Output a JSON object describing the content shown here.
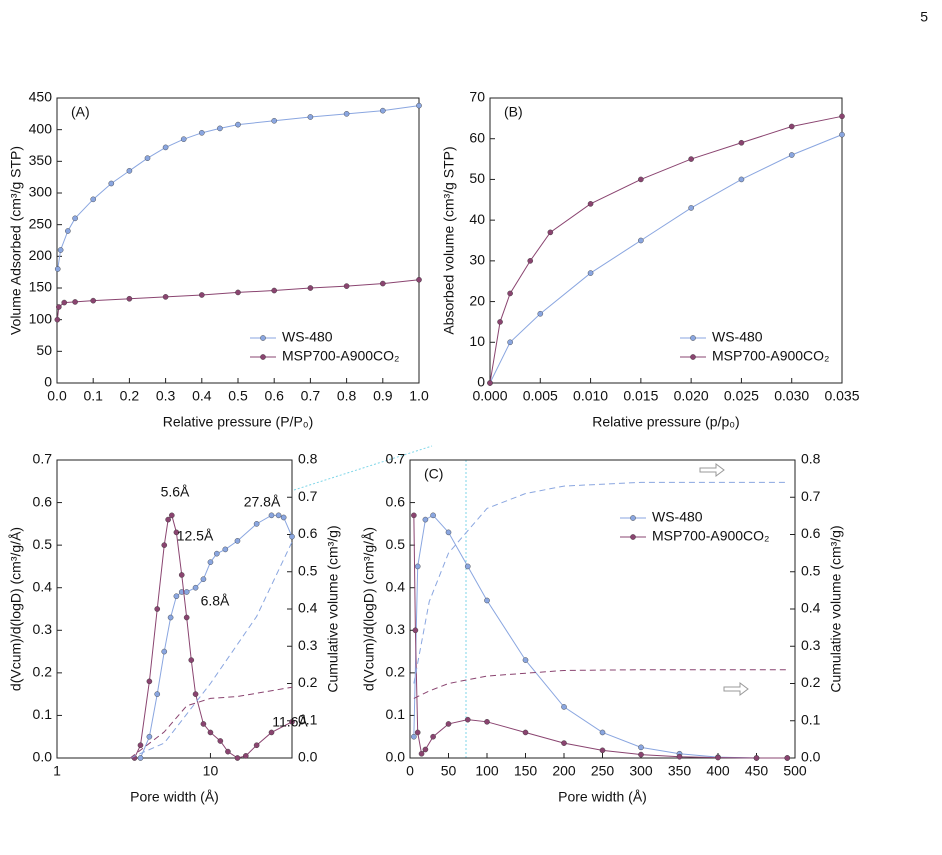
{
  "page_number": "5",
  "chart_data": [
    {
      "type": "line",
      "label": "(A)",
      "xlabel": "Relative pressure (P/P₀)",
      "ylabel": "Volume Adsorbed (cm³/g STP)",
      "xlim": [
        0,
        1
      ],
      "ylim": [
        0,
        450
      ],
      "xticks": [
        {
          "value": 0,
          "label": "0.0"
        },
        0.1,
        0.2,
        0.3,
        0.4,
        0.5,
        0.6,
        0.7,
        0.8,
        0.9,
        {
          "value": 1,
          "label": "1.0"
        }
      ],
      "yticks": [
        0,
        50,
        100,
        150,
        200,
        250,
        300,
        350,
        400,
        450
      ],
      "series": [
        {
          "name": "WS-480",
          "color": "#8aa6e0",
          "marker": true,
          "x": [
            0.002,
            0.01,
            0.03,
            0.05,
            0.1,
            0.15,
            0.2,
            0.25,
            0.3,
            0.35,
            0.4,
            0.45,
            0.5,
            0.6,
            0.7,
            0.8,
            0.9,
            1.0
          ],
          "values": [
            180,
            210,
            240,
            260,
            290,
            315,
            335,
            355,
            372,
            385,
            395,
            402,
            408,
            414,
            420,
            425,
            430,
            438
          ]
        },
        {
          "name": "MSP700-A900CO₂",
          "color": "#8a4470",
          "marker": true,
          "x": [
            0.001,
            0.005,
            0.02,
            0.05,
            0.1,
            0.2,
            0.3,
            0.4,
            0.5,
            0.6,
            0.7,
            0.8,
            0.9,
            1.0
          ],
          "values": [
            100,
            120,
            127,
            128,
            130,
            133,
            136,
            139,
            143,
            146,
            150,
            153,
            157,
            163
          ]
        }
      ]
    },
    {
      "type": "line",
      "label": "(B)",
      "xlabel": "Relative pressure (p/p₀)",
      "ylabel": "Absorbed volume (cm³/g STP)",
      "xlim": [
        0,
        0.035
      ],
      "ylim": [
        0,
        70
      ],
      "xticks": [
        {
          "value": 0,
          "label": "0.000"
        },
        0.005,
        {
          "value": 0.01,
          "label": "0.010"
        },
        0.015,
        {
          "value": 0.02,
          "label": "0.020"
        },
        0.025,
        {
          "value": 0.03,
          "label": "0.030"
        },
        0.035
      ],
      "yticks": [
        0,
        10,
        20,
        30,
        40,
        50,
        60,
        70
      ],
      "series": [
        {
          "name": "WS-480",
          "color": "#8aa6e0",
          "marker": true,
          "x": [
            0,
            0.002,
            0.005,
            0.01,
            0.015,
            0.02,
            0.025,
            0.03,
            0.035
          ],
          "values": [
            0,
            10,
            17,
            27,
            35,
            43,
            50,
            56,
            61
          ]
        },
        {
          "name": "MSP700-A900CO₂",
          "color": "#8a4470",
          "marker": true,
          "x": [
            0,
            0.001,
            0.002,
            0.004,
            0.006,
            0.01,
            0.015,
            0.02,
            0.025,
            0.03,
            0.035
          ],
          "values": [
            0,
            15,
            22,
            30,
            37,
            44,
            50,
            55,
            59,
            63,
            65.5
          ]
        }
      ]
    },
    {
      "type": "line",
      "xlabel": "Pore width (Å)",
      "ylabel": "d(Vcum)/d(logD) (cm³/g/Å)",
      "y2label": "Cumulative volume (cm³/g)",
      "xscale": "log",
      "xlim": [
        1,
        34
      ],
      "ylim": [
        0,
        0.7
      ],
      "y2lim": [
        0,
        0.8
      ],
      "xticks": [
        1,
        10
      ],
      "yticks": [
        {
          "value": 0,
          "label": "0.0"
        },
        0.1,
        0.2,
        0.3,
        0.4,
        0.5,
        0.6,
        0.7
      ],
      "y2ticks": [
        {
          "value": 0,
          "label": "0.0"
        },
        0.1,
        0.2,
        0.3,
        0.4,
        0.5,
        0.6,
        0.7,
        0.8
      ],
      "annotations": [
        "5.6Å",
        "12.5Å",
        "27.8Å",
        "6.8Å",
        "11.6Å"
      ],
      "series": [
        {
          "color": "#8aa6e0",
          "marker": true,
          "x": [
            3.5,
            4,
            4.5,
            5,
            5.5,
            6,
            6.5,
            7,
            8,
            9,
            10,
            11,
            12.5,
            15,
            20,
            25,
            27.8,
            30,
            34
          ],
          "values": [
            0,
            0.05,
            0.15,
            0.25,
            0.33,
            0.38,
            0.39,
            0.39,
            0.4,
            0.42,
            0.46,
            0.48,
            0.49,
            0.51,
            0.55,
            0.57,
            0.57,
            0.565,
            0.52
          ]
        },
        {
          "color": "#8a4470",
          "marker": true,
          "x": [
            3.2,
            3.5,
            4,
            4.5,
            5,
            5.3,
            5.6,
            6,
            6.5,
            7,
            7.5,
            8,
            9,
            10,
            11.6,
            13,
            15,
            17,
            20,
            25,
            34
          ],
          "values": [
            0,
            0.03,
            0.18,
            0.35,
            0.5,
            0.56,
            0.57,
            0.53,
            0.43,
            0.33,
            0.23,
            0.15,
            0.08,
            0.06,
            0.04,
            0.015,
            0,
            0.005,
            0.03,
            0.06,
            0.085
          ]
        },
        {
          "color": "#8aa6e0",
          "style": "dashed",
          "axis": "y2",
          "x": [
            3,
            5,
            10,
            20,
            34
          ],
          "values": [
            0,
            0.04,
            0.2,
            0.38,
            0.58
          ]
        },
        {
          "color": "#8a4470",
          "style": "dashed",
          "axis": "y2",
          "x": [
            3,
            5,
            7,
            10,
            15,
            34
          ],
          "values": [
            0,
            0.07,
            0.14,
            0.16,
            0.165,
            0.19
          ]
        }
      ]
    },
    {
      "type": "line",
      "label": "(C)",
      "xlabel": "Pore width (Å)",
      "ylabel": "d(Vcum)/d(logD) (cm³/g/Å)",
      "y2label": "Cumulative volume (cm³/g)",
      "xlim": [
        0,
        500
      ],
      "ylim": [
        0,
        0.7
      ],
      "y2lim": [
        0,
        0.8
      ],
      "xticks": [
        0,
        50,
        100,
        150,
        200,
        250,
        300,
        350,
        400,
        450,
        500
      ],
      "yticks": [
        {
          "value": 0,
          "label": "0.0"
        },
        0.1,
        0.2,
        0.3,
        0.4,
        0.5,
        0.6,
        0.7
      ],
      "y2ticks": [
        {
          "value": 0,
          "label": "0.0"
        },
        0.1,
        0.2,
        0.3,
        0.4,
        0.5,
        0.6,
        0.7,
        0.8
      ],
      "series": [
        {
          "name": "WS-480",
          "color": "#8aa6e0",
          "marker": true,
          "x": [
            5,
            10,
            20,
            30,
            50,
            75,
            100,
            150,
            200,
            250,
            300,
            350,
            400,
            450,
            490
          ],
          "values": [
            0.05,
            0.45,
            0.56,
            0.57,
            0.53,
            0.45,
            0.37,
            0.23,
            0.12,
            0.06,
            0.025,
            0.01,
            0.002,
            0,
            0
          ]
        },
        {
          "name": "MSP700-A900CO₂",
          "color": "#8a4470",
          "marker": true,
          "x": [
            5,
            7,
            10,
            15,
            20,
            30,
            50,
            75,
            100,
            150,
            200,
            250,
            300,
            350,
            400,
            450,
            490
          ],
          "values": [
            0.57,
            0.3,
            0.06,
            0.01,
            0.02,
            0.05,
            0.08,
            0.09,
            0.085,
            0.06,
            0.035,
            0.018,
            0.008,
            0.003,
            0.001,
            0,
            0
          ]
        },
        {
          "color": "#8aa6e0",
          "style": "dashed",
          "axis": "y2",
          "x": [
            5,
            25,
            50,
            100,
            150,
            200,
            300,
            400,
            490
          ],
          "values": [
            0.2,
            0.42,
            0.55,
            0.67,
            0.71,
            0.73,
            0.74,
            0.74,
            0.74
          ]
        },
        {
          "color": "#8a4470",
          "style": "dashed",
          "axis": "y2",
          "x": [
            5,
            25,
            50,
            100,
            200,
            300,
            490
          ],
          "values": [
            0.16,
            0.18,
            0.2,
            0.22,
            0.235,
            0.237,
            0.237
          ]
        }
      ]
    }
  ]
}
